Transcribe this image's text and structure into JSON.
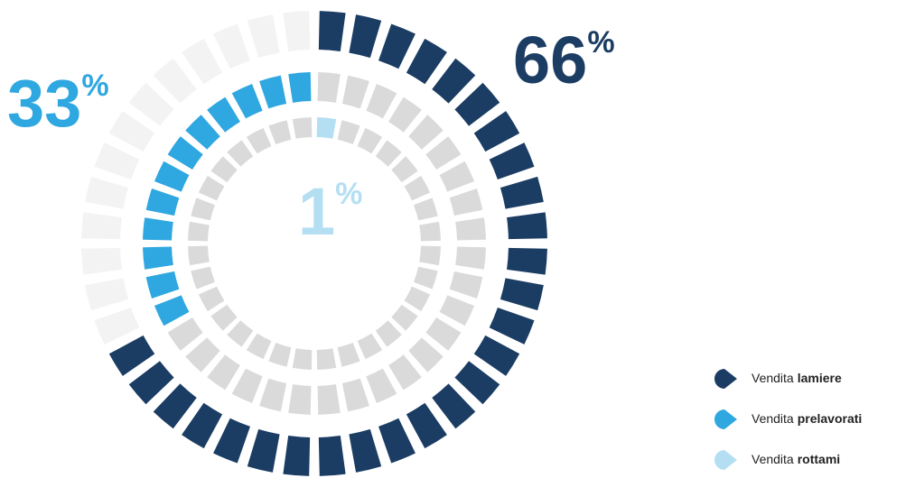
{
  "chart_data": {
    "type": "ring",
    "unit": "%",
    "series": [
      {
        "label": "Vendita",
        "name": "lamiere",
        "color": "#1b3d63",
        "values": [
          66
        ]
      },
      {
        "label": "Vendita",
        "name": "prelavorati",
        "color": "#2fa7e0",
        "values": [
          33
        ]
      },
      {
        "label": "Vendita",
        "name": "rottami",
        "color": "#b4dff3",
        "values": [
          1
        ]
      }
    ]
  }
}
